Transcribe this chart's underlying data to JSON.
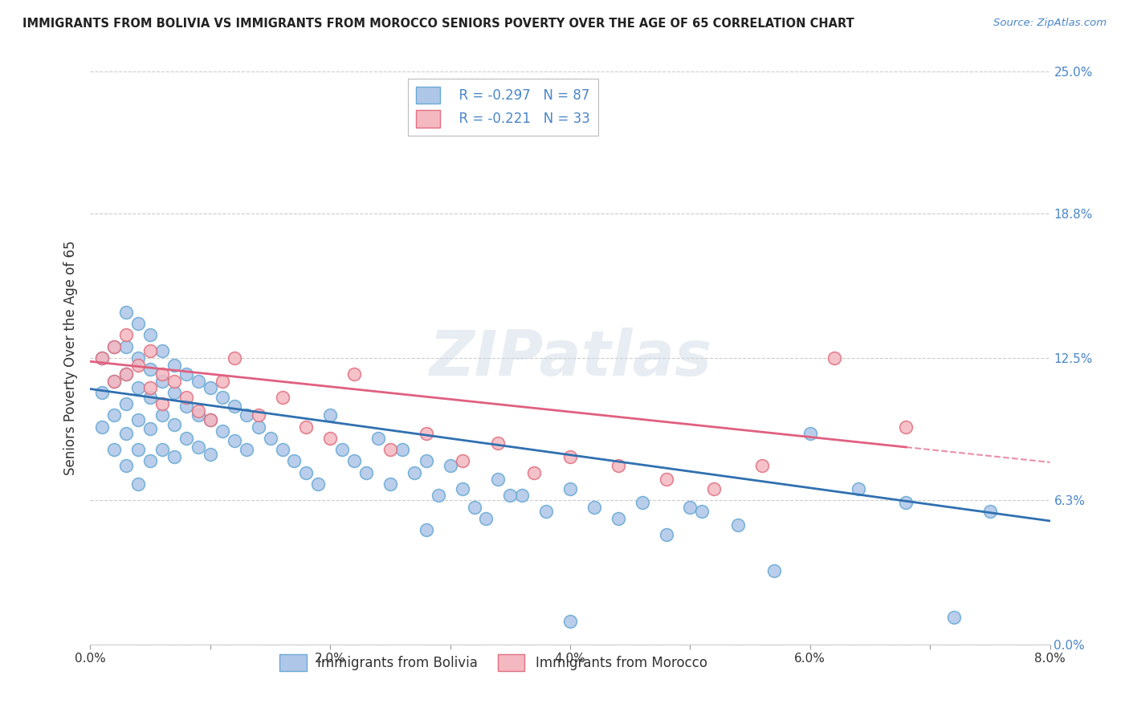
{
  "title": "IMMIGRANTS FROM BOLIVIA VS IMMIGRANTS FROM MOROCCO SENIORS POVERTY OVER THE AGE OF 65 CORRELATION CHART",
  "source": "Source: ZipAtlas.com",
  "ylabel": "Seniors Poverty Over the Age of 65",
  "xlabel_bolivia": "Immigrants from Bolivia",
  "xlabel_morocco": "Immigrants from Morocco",
  "bolivia_R": -0.297,
  "bolivia_N": 87,
  "morocco_R": -0.221,
  "morocco_N": 33,
  "xlim": [
    0.0,
    0.08
  ],
  "ylim": [
    0.0,
    0.25
  ],
  "yticks": [
    0.0,
    0.063,
    0.125,
    0.188,
    0.25
  ],
  "ytick_labels": [
    "0.0%",
    "6.3%",
    "12.5%",
    "18.8%",
    "25.0%"
  ],
  "xticks": [
    0.0,
    0.01,
    0.02,
    0.03,
    0.04,
    0.05,
    0.06,
    0.07,
    0.08
  ],
  "xtick_labels": [
    "0.0%",
    "",
    "2.0%",
    "",
    "4.0%",
    "",
    "6.0%",
    "",
    "8.0%"
  ],
  "bolivia_color": "#aec6e8",
  "morocco_color": "#f4b8c1",
  "bolivia_edge_color": "#6aaad4",
  "morocco_edge_color": "#e07080",
  "bolivia_line_color": "#3070b0",
  "morocco_line_color": "#e06080",
  "watermark": "ZIPatlas",
  "bolivia_x": [
    0.001,
    0.001,
    0.001,
    0.002,
    0.002,
    0.002,
    0.002,
    0.003,
    0.003,
    0.003,
    0.003,
    0.003,
    0.003,
    0.004,
    0.004,
    0.004,
    0.004,
    0.004,
    0.004,
    0.005,
    0.005,
    0.005,
    0.005,
    0.005,
    0.006,
    0.006,
    0.006,
    0.006,
    0.007,
    0.007,
    0.007,
    0.007,
    0.008,
    0.008,
    0.008,
    0.009,
    0.009,
    0.009,
    0.01,
    0.01,
    0.01,
    0.011,
    0.011,
    0.012,
    0.012,
    0.013,
    0.013,
    0.014,
    0.015,
    0.016,
    0.017,
    0.018,
    0.019,
    0.02,
    0.021,
    0.022,
    0.023,
    0.024,
    0.025,
    0.026,
    0.027,
    0.028,
    0.029,
    0.03,
    0.031,
    0.032,
    0.034,
    0.036,
    0.038,
    0.04,
    0.042,
    0.044,
    0.046,
    0.048,
    0.051,
    0.054,
    0.057,
    0.06,
    0.064,
    0.068,
    0.072,
    0.075,
    0.035,
    0.04,
    0.033,
    0.028,
    0.05
  ],
  "bolivia_y": [
    0.125,
    0.11,
    0.095,
    0.13,
    0.115,
    0.1,
    0.085,
    0.145,
    0.13,
    0.118,
    0.105,
    0.092,
    0.078,
    0.14,
    0.125,
    0.112,
    0.098,
    0.085,
    0.07,
    0.135,
    0.12,
    0.108,
    0.094,
    0.08,
    0.128,
    0.115,
    0.1,
    0.085,
    0.122,
    0.11,
    0.096,
    0.082,
    0.118,
    0.104,
    0.09,
    0.115,
    0.1,
    0.086,
    0.112,
    0.098,
    0.083,
    0.108,
    0.093,
    0.104,
    0.089,
    0.1,
    0.085,
    0.095,
    0.09,
    0.085,
    0.08,
    0.075,
    0.07,
    0.1,
    0.085,
    0.08,
    0.075,
    0.09,
    0.07,
    0.085,
    0.075,
    0.08,
    0.065,
    0.078,
    0.068,
    0.06,
    0.072,
    0.065,
    0.058,
    0.068,
    0.06,
    0.055,
    0.062,
    0.048,
    0.058,
    0.052,
    0.032,
    0.092,
    0.068,
    0.062,
    0.012,
    0.058,
    0.065,
    0.01,
    0.055,
    0.05,
    0.06
  ],
  "morocco_x": [
    0.001,
    0.002,
    0.002,
    0.003,
    0.003,
    0.004,
    0.005,
    0.005,
    0.006,
    0.006,
    0.007,
    0.008,
    0.009,
    0.01,
    0.011,
    0.012,
    0.014,
    0.016,
    0.018,
    0.02,
    0.022,
    0.025,
    0.028,
    0.031,
    0.034,
    0.037,
    0.04,
    0.044,
    0.048,
    0.052,
    0.056,
    0.062,
    0.068
  ],
  "morocco_y": [
    0.125,
    0.13,
    0.115,
    0.135,
    0.118,
    0.122,
    0.128,
    0.112,
    0.118,
    0.105,
    0.115,
    0.108,
    0.102,
    0.098,
    0.115,
    0.125,
    0.1,
    0.108,
    0.095,
    0.09,
    0.118,
    0.085,
    0.092,
    0.08,
    0.088,
    0.075,
    0.082,
    0.078,
    0.072,
    0.068,
    0.078,
    0.125,
    0.095
  ],
  "bolivia_line_intercept": 0.1115,
  "bolivia_line_slope": -0.72,
  "morocco_line_intercept": 0.1235,
  "morocco_line_slope": -0.55
}
